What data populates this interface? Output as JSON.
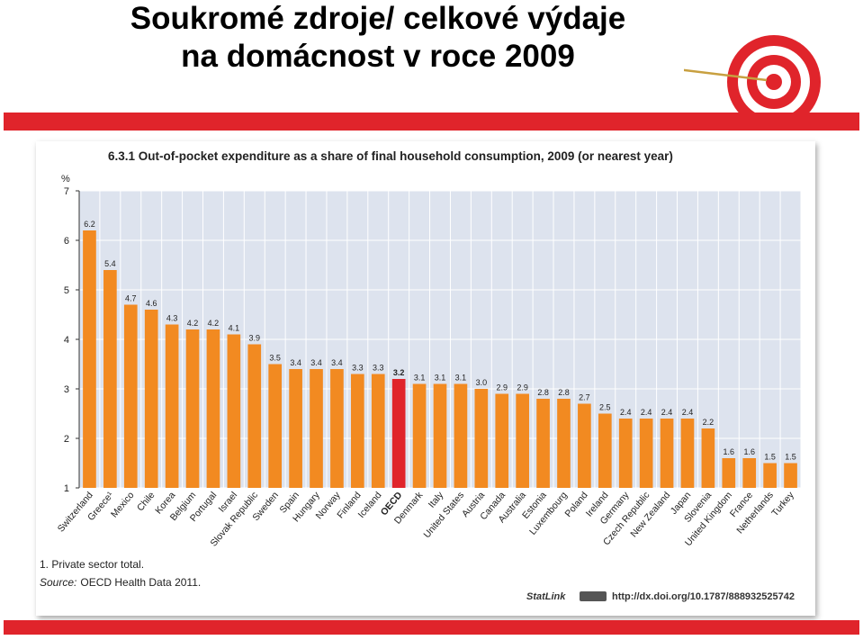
{
  "slide": {
    "title_line1": "Soukromé zdroje/ celkové výdaje",
    "title_line2": "na domácnost v roce 2009"
  },
  "chart_data": {
    "type": "bar",
    "title": "6.3.1  Out-of-pocket expenditure as a share of final household consumption, 2009 (or nearest year)",
    "ylabel": "%",
    "ylim": [
      1,
      7
    ],
    "yticks": [
      1,
      2,
      3,
      4,
      5,
      6,
      7
    ],
    "categories": [
      "Switzerland",
      "Greece¹",
      "Mexico",
      "Chile",
      "Korea",
      "Belgium",
      "Portugal",
      "Israel",
      "Slovak Republic",
      "Sweden",
      "Spain",
      "Hungary",
      "Norway",
      "Finland",
      "Iceland",
      "OECD",
      "Denmark",
      "Italy",
      "United States",
      "Austria",
      "Canada",
      "Australia",
      "Estonia",
      "Luxembourg",
      "Poland",
      "Ireland",
      "Germany",
      "Czech Republic",
      "New Zealand",
      "Japan",
      "Slovenia",
      "United Kingdom",
      "France",
      "Netherlands",
      "Turkey"
    ],
    "values": [
      6.2,
      5.4,
      4.7,
      4.6,
      4.3,
      4.2,
      4.2,
      4.1,
      3.9,
      3.5,
      3.4,
      3.4,
      3.4,
      3.3,
      3.3,
      3.2,
      3.1,
      3.1,
      3.1,
      3.0,
      2.9,
      2.9,
      2.8,
      2.8,
      2.7,
      2.5,
      2.4,
      2.4,
      2.4,
      2.4,
      2.2,
      1.6,
      1.6,
      1.5,
      1.5
    ],
    "value_labels": [
      "6.2",
      "5.4",
      "4.7",
      "4.6",
      "4.3",
      "4.2",
      "4.2",
      "4.1",
      "3.9",
      "3.5",
      "3.4",
      "3.4",
      "3.4",
      "3.3",
      "3.3",
      "3.2",
      "3.1",
      "3.1",
      "3.1",
      "3.0",
      "2.9",
      "2.9",
      "2.8",
      "2.8",
      "2.7",
      "2.5",
      "2.4",
      "2.4",
      "2.4",
      "2.4",
      "2.2",
      "1.6",
      "1.6",
      "1.5",
      "1.5"
    ],
    "highlight": "OECD",
    "colors": {
      "bar": "#f28a21",
      "highlight": "#e0242b",
      "grid": "#ffffff",
      "background": "#dde3ee"
    },
    "footnote": "1. Private sector total.",
    "source_label": "Source:",
    "source_text": "OECD Health Data 2011.",
    "statlink_label": "StatLink",
    "statlink_url": "http://dx.doi.org/10.1787/888932525742"
  }
}
